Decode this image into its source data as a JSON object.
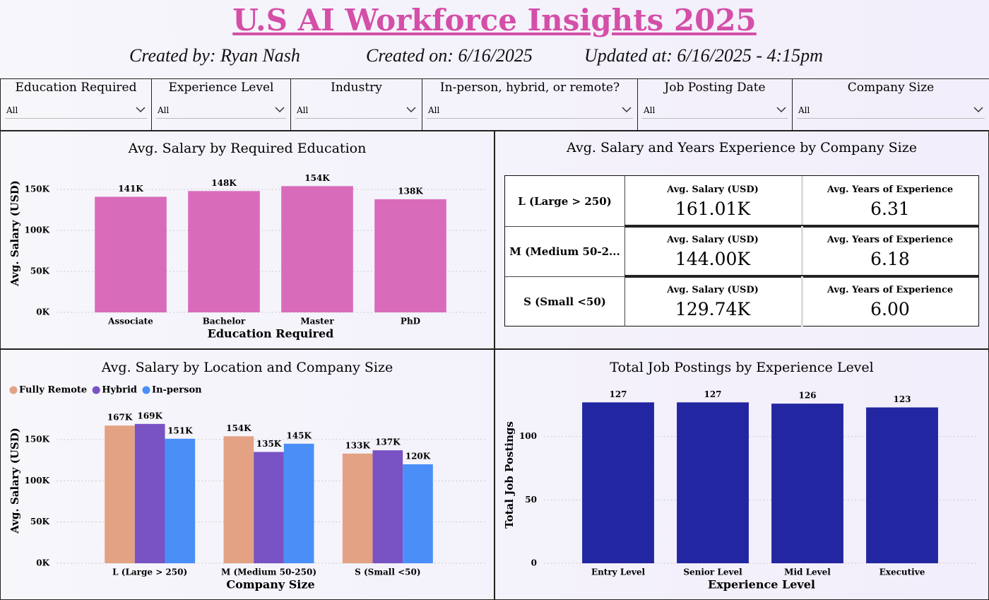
{
  "header": {
    "title": "U.S AI Workforce Insights 2025",
    "created_by": "Created by: Ryan Nash",
    "created_on": "Created on: 6/16/2025",
    "updated_at": "Updated at: 6/16/2025 - 4:15pm"
  },
  "filters": [
    {
      "label": "Education Required",
      "value": "All"
    },
    {
      "label": "Experience Level",
      "value": "All"
    },
    {
      "label": "Industry",
      "value": "All"
    },
    {
      "label": "In-person, hybrid, or remote?",
      "value": "All"
    },
    {
      "label": "Job Posting Date",
      "value": "All"
    },
    {
      "label": "Company Size",
      "value": "All"
    }
  ],
  "table": {
    "title": "Avg. Salary and Years Experience by Company Size",
    "rows": [
      [
        "L (Large > 250)",
        "Avg. Salary (USD)",
        "161.01K",
        "Avg. Years of Experience",
        "6.31"
      ],
      [
        "M (Medium 50-2...",
        "Avg. Salary (USD)",
        "144.00K",
        "Avg. Years of Experience",
        "6.18"
      ],
      [
        "S (Small <50)",
        "Avg. Salary (USD)",
        "129.74K",
        "Avg. Years of Experience",
        "6.00"
      ]
    ]
  },
  "chart_data": [
    {
      "type": "bar",
      "title": "Avg. Salary by Required Education",
      "x_label": "Education Required",
      "y_label": "Avg. Salary (USD)",
      "categories": [
        "Associate",
        "Bachelor",
        "Master",
        "PhD"
      ],
      "values": [
        141000,
        148000,
        154000,
        138000
      ],
      "value_labels": [
        "141K",
        "148K",
        "154K",
        "138K"
      ],
      "color": "#d96bbb",
      "ylim": [
        0,
        175000
      ],
      "yticks": [
        {
          "value": 0,
          "label": "0K"
        },
        {
          "value": 50000,
          "label": "50K"
        },
        {
          "value": 100000,
          "label": "100K"
        },
        {
          "value": 150000,
          "label": "150K"
        }
      ],
      "grid": true
    },
    {
      "type": "grouped_bar",
      "title": "Avg. Salary by Location and Company Size",
      "x_label": "Company Size",
      "y_label": "Avg. Salary (USD)",
      "categories": [
        "L (Large > 250)",
        "M (Medium 50-250)",
        "S (Small <50)"
      ],
      "series": [
        {
          "name": "Fully Remote",
          "color": "#e3a283",
          "values": [
            167000,
            154000,
            133000
          ],
          "value_labels": [
            "167K",
            "154K",
            "133K"
          ]
        },
        {
          "name": "Hybrid",
          "color": "#7952c4",
          "values": [
            169000,
            135000,
            137000
          ],
          "value_labels": [
            "169K",
            "135K",
            "137K"
          ]
        },
        {
          "name": "In-person",
          "color": "#4a8ff7",
          "values": [
            151000,
            145000,
            120000
          ],
          "value_labels": [
            "151K",
            "145K",
            "120K"
          ]
        }
      ],
      "ylim": [
        0,
        180000
      ],
      "yticks": [
        {
          "value": 0,
          "label": "0K"
        },
        {
          "value": 50000,
          "label": "50K"
        },
        {
          "value": 100000,
          "label": "100K"
        },
        {
          "value": 150000,
          "label": "150K"
        }
      ],
      "grid": true,
      "legend": "top-left"
    },
    {
      "type": "bar",
      "title": "Total Job Postings by Experience Level",
      "x_label": "Experience Level",
      "y_label": "Total Job Postings",
      "categories": [
        "Entry Level",
        "Senior Level",
        "Mid Level",
        "Executive"
      ],
      "values": [
        127,
        127,
        126,
        123
      ],
      "color": "#2226a0",
      "ylim": [
        0,
        135
      ],
      "yticks": [
        0,
        50,
        100
      ],
      "grid": true
    }
  ]
}
